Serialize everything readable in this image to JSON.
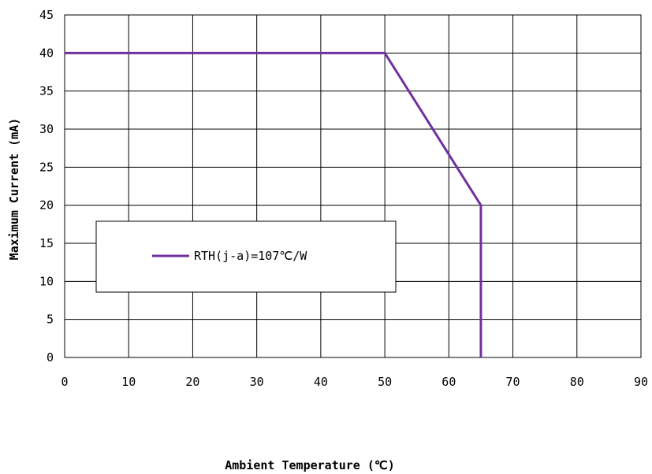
{
  "chart_data": {
    "type": "line",
    "title": "",
    "xlabel": "Ambient Temperature (℃)",
    "ylabel": "Maximum Current (mA)",
    "xlim": [
      0,
      90
    ],
    "ylim": [
      0,
      45
    ],
    "x_ticks": [
      "0",
      "10",
      "20",
      "30",
      "40",
      "50",
      "60",
      "70",
      "80",
      "90"
    ],
    "y_ticks": [
      "0",
      "5",
      "10",
      "15",
      "20",
      "25",
      "30",
      "35",
      "40",
      "45"
    ],
    "grid": true,
    "legend_position": "center-left",
    "series": [
      {
        "name": "RTH(j-a)=107℃/W",
        "color": "#7030a0",
        "points": [
          {
            "x": 0,
            "y": 40
          },
          {
            "x": 50,
            "y": 40
          },
          {
            "x": 65,
            "y": 20
          },
          {
            "x": 65,
            "y": 0
          }
        ]
      }
    ]
  }
}
